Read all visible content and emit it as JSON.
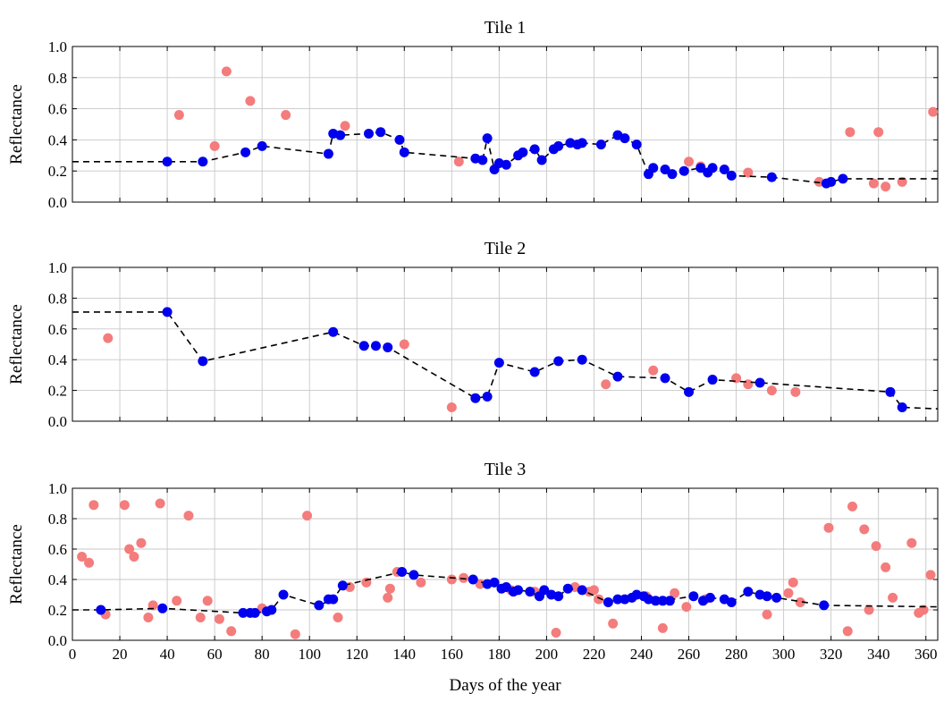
{
  "colors": {
    "clean": "#0000ee",
    "noisy": "#f47c7c",
    "trend": "#000000",
    "grid": "#c8c8c8"
  },
  "chart_data": {
    "type": "scatter",
    "xlabel": "Days of the year",
    "ylabel": "Reflectance",
    "xlim": [
      0,
      365
    ],
    "ylim": [
      0,
      1
    ],
    "xticks": [
      "0",
      "20",
      "40",
      "60",
      "80",
      "100",
      "120",
      "140",
      "160",
      "180",
      "200",
      "220",
      "240",
      "260",
      "280",
      "300",
      "320",
      "340",
      "360"
    ],
    "yticks": [
      "0.0",
      "0.2",
      "0.4",
      "0.6",
      "0.8",
      "1.0"
    ],
    "grid": true,
    "panels": [
      {
        "title": "Tile 1",
        "trend": [
          [
            0,
            0.26
          ],
          [
            40,
            0.26
          ],
          [
            55,
            0.26
          ],
          [
            73,
            0.32
          ],
          [
            80,
            0.36
          ],
          [
            108,
            0.31
          ],
          [
            110,
            0.44
          ],
          [
            113,
            0.43
          ],
          [
            125,
            0.44
          ],
          [
            130,
            0.45
          ],
          [
            138,
            0.4
          ],
          [
            140,
            0.32
          ],
          [
            170,
            0.28
          ],
          [
            173,
            0.27
          ],
          [
            175,
            0.41
          ],
          [
            178,
            0.21
          ],
          [
            180,
            0.25
          ],
          [
            183,
            0.24
          ],
          [
            188,
            0.3
          ],
          [
            190,
            0.32
          ],
          [
            195,
            0.34
          ],
          [
            198,
            0.27
          ],
          [
            203,
            0.34
          ],
          [
            205,
            0.36
          ],
          [
            210,
            0.38
          ],
          [
            213,
            0.37
          ],
          [
            215,
            0.38
          ],
          [
            223,
            0.37
          ],
          [
            230,
            0.43
          ],
          [
            233,
            0.41
          ],
          [
            238,
            0.37
          ],
          [
            243,
            0.18
          ],
          [
            245,
            0.22
          ],
          [
            250,
            0.21
          ],
          [
            253,
            0.18
          ],
          [
            258,
            0.2
          ],
          [
            265,
            0.22
          ],
          [
            268,
            0.19
          ],
          [
            270,
            0.22
          ],
          [
            275,
            0.21
          ],
          [
            278,
            0.17
          ],
          [
            295,
            0.16
          ],
          [
            318,
            0.12
          ],
          [
            320,
            0.13
          ],
          [
            325,
            0.15
          ],
          [
            365,
            0.15
          ]
        ],
        "clean": [
          [
            40,
            0.26
          ],
          [
            55,
            0.26
          ],
          [
            73,
            0.32
          ],
          [
            80,
            0.36
          ],
          [
            108,
            0.31
          ],
          [
            110,
            0.44
          ],
          [
            113,
            0.43
          ],
          [
            125,
            0.44
          ],
          [
            130,
            0.45
          ],
          [
            138,
            0.4
          ],
          [
            140,
            0.32
          ],
          [
            170,
            0.28
          ],
          [
            173,
            0.27
          ],
          [
            175,
            0.41
          ],
          [
            178,
            0.21
          ],
          [
            180,
            0.25
          ],
          [
            183,
            0.24
          ],
          [
            188,
            0.3
          ],
          [
            190,
            0.32
          ],
          [
            195,
            0.34
          ],
          [
            198,
            0.27
          ],
          [
            203,
            0.34
          ],
          [
            205,
            0.36
          ],
          [
            210,
            0.38
          ],
          [
            213,
            0.37
          ],
          [
            215,
            0.38
          ],
          [
            223,
            0.37
          ],
          [
            230,
            0.43
          ],
          [
            233,
            0.41
          ],
          [
            238,
            0.37
          ],
          [
            243,
            0.18
          ],
          [
            245,
            0.22
          ],
          [
            250,
            0.21
          ],
          [
            253,
            0.18
          ],
          [
            258,
            0.2
          ],
          [
            265,
            0.22
          ],
          [
            268,
            0.19
          ],
          [
            270,
            0.22
          ],
          [
            275,
            0.21
          ],
          [
            278,
            0.17
          ],
          [
            295,
            0.16
          ],
          [
            318,
            0.12
          ],
          [
            320,
            0.13
          ],
          [
            325,
            0.15
          ]
        ],
        "noisy": [
          [
            45,
            0.56
          ],
          [
            60,
            0.36
          ],
          [
            65,
            0.84
          ],
          [
            75,
            0.65
          ],
          [
            90,
            0.56
          ],
          [
            115,
            0.49
          ],
          [
            163,
            0.26
          ],
          [
            260,
            0.26
          ],
          [
            265,
            0.23
          ],
          [
            285,
            0.19
          ],
          [
            315,
            0.13
          ],
          [
            328,
            0.45
          ],
          [
            338,
            0.12
          ],
          [
            340,
            0.45
          ],
          [
            343,
            0.1
          ],
          [
            350,
            0.13
          ],
          [
            363,
            0.58
          ]
        ]
      },
      {
        "title": "Tile 2",
        "trend": [
          [
            0,
            0.71
          ],
          [
            40,
            0.71
          ],
          [
            55,
            0.39
          ],
          [
            110,
            0.58
          ],
          [
            123,
            0.49
          ],
          [
            128,
            0.49
          ],
          [
            133,
            0.48
          ],
          [
            170,
            0.15
          ],
          [
            175,
            0.16
          ],
          [
            180,
            0.38
          ],
          [
            195,
            0.32
          ],
          [
            205,
            0.39
          ],
          [
            215,
            0.4
          ],
          [
            230,
            0.29
          ],
          [
            250,
            0.28
          ],
          [
            260,
            0.19
          ],
          [
            270,
            0.27
          ],
          [
            290,
            0.25
          ],
          [
            345,
            0.19
          ],
          [
            350,
            0.09
          ],
          [
            365,
            0.08
          ]
        ],
        "clean": [
          [
            40,
            0.71
          ],
          [
            55,
            0.39
          ],
          [
            110,
            0.58
          ],
          [
            123,
            0.49
          ],
          [
            128,
            0.49
          ],
          [
            133,
            0.48
          ],
          [
            170,
            0.15
          ],
          [
            175,
            0.16
          ],
          [
            180,
            0.38
          ],
          [
            195,
            0.32
          ],
          [
            205,
            0.39
          ],
          [
            215,
            0.4
          ],
          [
            230,
            0.29
          ],
          [
            250,
            0.28
          ],
          [
            260,
            0.19
          ],
          [
            270,
            0.27
          ],
          [
            290,
            0.25
          ],
          [
            345,
            0.19
          ],
          [
            350,
            0.09
          ]
        ],
        "noisy": [
          [
            15,
            0.54
          ],
          [
            140,
            0.5
          ],
          [
            160,
            0.09
          ],
          [
            225,
            0.24
          ],
          [
            245,
            0.33
          ],
          [
            280,
            0.28
          ],
          [
            285,
            0.24
          ],
          [
            295,
            0.2
          ],
          [
            305,
            0.19
          ]
        ]
      },
      {
        "title": "Tile 3",
        "trend": [
          [
            0,
            0.2
          ],
          [
            12,
            0.2
          ],
          [
            38,
            0.21
          ],
          [
            72,
            0.18
          ],
          [
            77,
            0.18
          ],
          [
            82,
            0.19
          ],
          [
            84,
            0.2
          ],
          [
            89,
            0.3
          ],
          [
            104,
            0.23
          ],
          [
            110,
            0.27
          ],
          [
            114,
            0.36
          ],
          [
            139,
            0.45
          ],
          [
            144,
            0.43
          ],
          [
            169,
            0.4
          ],
          [
            175,
            0.37
          ],
          [
            178,
            0.38
          ],
          [
            183,
            0.33
          ],
          [
            188,
            0.33
          ],
          [
            193,
            0.32
          ],
          [
            197,
            0.29
          ],
          [
            199,
            0.33
          ],
          [
            205,
            0.29
          ],
          [
            209,
            0.34
          ],
          [
            215,
            0.33
          ],
          [
            226,
            0.25
          ],
          [
            230,
            0.27
          ],
          [
            233,
            0.27
          ],
          [
            238,
            0.3
          ],
          [
            243,
            0.27
          ],
          [
            249,
            0.26
          ],
          [
            262,
            0.29
          ],
          [
            266,
            0.26
          ],
          [
            269,
            0.28
          ],
          [
            275,
            0.27
          ],
          [
            278,
            0.25
          ],
          [
            285,
            0.32
          ],
          [
            290,
            0.3
          ],
          [
            293,
            0.29
          ],
          [
            297,
            0.28
          ],
          [
            317,
            0.23
          ],
          [
            365,
            0.22
          ]
        ],
        "clean": [
          [
            12,
            0.2
          ],
          [
            38,
            0.21
          ],
          [
            72,
            0.18
          ],
          [
            75,
            0.18
          ],
          [
            77,
            0.18
          ],
          [
            82,
            0.19
          ],
          [
            84,
            0.2
          ],
          [
            89,
            0.3
          ],
          [
            104,
            0.23
          ],
          [
            108,
            0.27
          ],
          [
            110,
            0.27
          ],
          [
            114,
            0.36
          ],
          [
            139,
            0.45
          ],
          [
            144,
            0.43
          ],
          [
            169,
            0.4
          ],
          [
            175,
            0.37
          ],
          [
            178,
            0.38
          ],
          [
            181,
            0.34
          ],
          [
            183,
            0.35
          ],
          [
            186,
            0.32
          ],
          [
            188,
            0.33
          ],
          [
            193,
            0.32
          ],
          [
            197,
            0.29
          ],
          [
            199,
            0.33
          ],
          [
            202,
            0.3
          ],
          [
            205,
            0.29
          ],
          [
            209,
            0.34
          ],
          [
            215,
            0.33
          ],
          [
            226,
            0.25
          ],
          [
            230,
            0.27
          ],
          [
            233,
            0.27
          ],
          [
            236,
            0.28
          ],
          [
            238,
            0.3
          ],
          [
            241,
            0.29
          ],
          [
            243,
            0.27
          ],
          [
            246,
            0.26
          ],
          [
            249,
            0.26
          ],
          [
            252,
            0.26
          ],
          [
            262,
            0.29
          ],
          [
            266,
            0.26
          ],
          [
            269,
            0.28
          ],
          [
            275,
            0.27
          ],
          [
            278,
            0.25
          ],
          [
            285,
            0.32
          ],
          [
            290,
            0.3
          ],
          [
            293,
            0.29
          ],
          [
            297,
            0.28
          ],
          [
            317,
            0.23
          ]
        ],
        "noisy": [
          [
            4,
            0.55
          ],
          [
            7,
            0.51
          ],
          [
            9,
            0.89
          ],
          [
            14,
            0.17
          ],
          [
            22,
            0.89
          ],
          [
            24,
            0.6
          ],
          [
            26,
            0.55
          ],
          [
            29,
            0.64
          ],
          [
            32,
            0.15
          ],
          [
            34,
            0.23
          ],
          [
            37,
            0.9
          ],
          [
            44,
            0.26
          ],
          [
            49,
            0.82
          ],
          [
            54,
            0.15
          ],
          [
            57,
            0.26
          ],
          [
            62,
            0.14
          ],
          [
            67,
            0.06
          ],
          [
            80,
            0.21
          ],
          [
            94,
            0.04
          ],
          [
            99,
            0.82
          ],
          [
            112,
            0.15
          ],
          [
            117,
            0.35
          ],
          [
            124,
            0.38
          ],
          [
            133,
            0.28
          ],
          [
            134,
            0.34
          ],
          [
            137,
            0.45
          ],
          [
            147,
            0.38
          ],
          [
            160,
            0.4
          ],
          [
            165,
            0.41
          ],
          [
            172,
            0.37
          ],
          [
            185,
            0.33
          ],
          [
            195,
            0.32
          ],
          [
            204,
            0.05
          ],
          [
            212,
            0.35
          ],
          [
            218,
            0.32
          ],
          [
            220,
            0.33
          ],
          [
            222,
            0.27
          ],
          [
            228,
            0.11
          ],
          [
            242,
            0.29
          ],
          [
            249,
            0.08
          ],
          [
            254,
            0.31
          ],
          [
            259,
            0.22
          ],
          [
            267,
            0.27
          ],
          [
            293,
            0.17
          ],
          [
            302,
            0.31
          ],
          [
            304,
            0.38
          ],
          [
            307,
            0.25
          ],
          [
            319,
            0.74
          ],
          [
            327,
            0.06
          ],
          [
            329,
            0.88
          ],
          [
            334,
            0.73
          ],
          [
            336,
            0.2
          ],
          [
            339,
            0.62
          ],
          [
            343,
            0.48
          ],
          [
            346,
            0.28
          ],
          [
            354,
            0.64
          ],
          [
            357,
            0.18
          ],
          [
            359,
            0.2
          ],
          [
            362,
            0.43
          ]
        ]
      }
    ]
  }
}
